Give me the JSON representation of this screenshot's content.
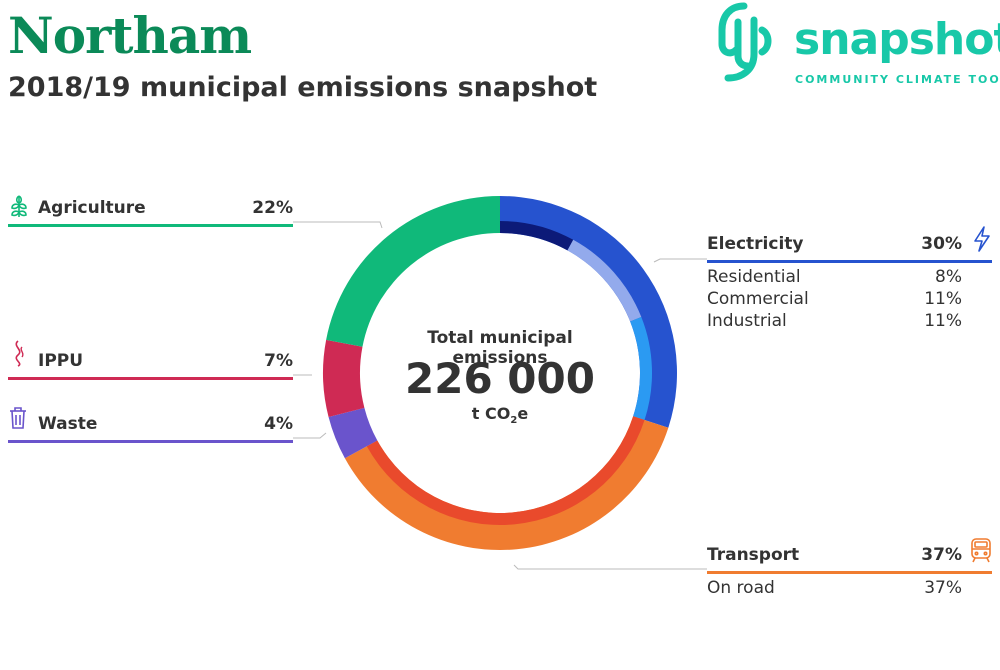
{
  "header": {
    "title": "Northam",
    "subtitle": "2018/19 municipal emissions snapshot"
  },
  "logo": {
    "word": "snapshot",
    "tagline": "COMMUNITY CLIMATE TOOL",
    "color": "#18c8a8"
  },
  "center": {
    "label": "Total municipal emissions",
    "value": "226 000",
    "unit_prefix": "t CO",
    "unit_sub": "2",
    "unit_suffix": "e"
  },
  "sectors": {
    "agriculture": {
      "label": "Agriculture",
      "pct": "22%",
      "color": "#10b97a",
      "icon": "wheat-icon"
    },
    "ippu": {
      "label": "IPPU",
      "pct": "7%",
      "color": "#cf2a54",
      "icon": "smoke-icon"
    },
    "waste": {
      "label": "Waste",
      "pct": "4%",
      "color": "#6a54cc",
      "icon": "trash-icon"
    },
    "electricity": {
      "label": "Electricity",
      "pct": "30%",
      "color": "#2653cf",
      "icon": "lightning-icon",
      "subs": [
        {
          "label": "Residential",
          "pct": "8%"
        },
        {
          "label": "Commercial",
          "pct": "11%"
        },
        {
          "label": "Industrial",
          "pct": "11%"
        }
      ]
    },
    "transport": {
      "label": "Transport",
      "pct": "37%",
      "color": "#f07c30",
      "icon": "train-icon",
      "subs": [
        {
          "label": "On road",
          "pct": "37%"
        }
      ]
    }
  },
  "chart_data": {
    "type": "pie",
    "title": "Total municipal emissions",
    "total": 226000,
    "unit": "t CO2e",
    "series": [
      {
        "name": "Electricity",
        "value": 30,
        "color": "#2653cf",
        "children": [
          {
            "name": "Residential",
            "value": 8,
            "color": "#0c1a78"
          },
          {
            "name": "Commercial",
            "value": 11,
            "color": "#93aaec"
          },
          {
            "name": "Industrial",
            "value": 11,
            "color": "#2b9af2"
          }
        ]
      },
      {
        "name": "Transport",
        "value": 37,
        "color": "#f07c30",
        "children": [
          {
            "name": "On road",
            "value": 37,
            "color": "#e94a2c"
          }
        ]
      },
      {
        "name": "Waste",
        "value": 4,
        "color": "#6a54cc"
      },
      {
        "name": "IPPU",
        "value": 7,
        "color": "#cf2a54"
      },
      {
        "name": "Agriculture",
        "value": 22,
        "color": "#10b97a"
      }
    ]
  }
}
